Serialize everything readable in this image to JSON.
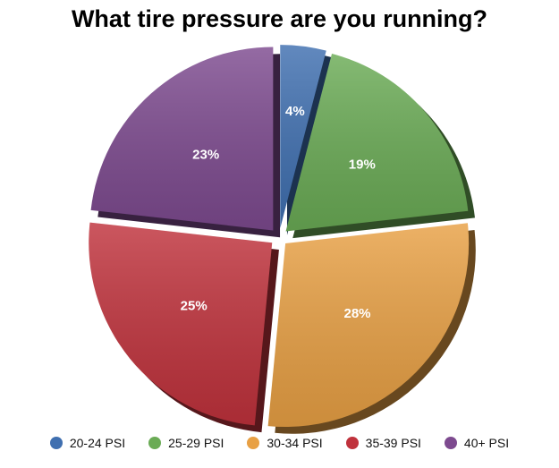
{
  "chart_data": {
    "type": "pie",
    "title": "What tire pressure are you running?",
    "categories": [
      "20-24 PSI",
      "25-29 PSI",
      "30-34 PSI",
      "35-39 PSI",
      "40+ PSI"
    ],
    "values": [
      4,
      19,
      28,
      25,
      23
    ],
    "labels": [
      "4%",
      "19%",
      "28%",
      "25%",
      "23%"
    ],
    "colors": [
      "#3f6fb0",
      "#6aab55",
      "#e8a044",
      "#c0323c",
      "#7d4a8f"
    ],
    "exploded": true,
    "legend_position": "bottom"
  }
}
